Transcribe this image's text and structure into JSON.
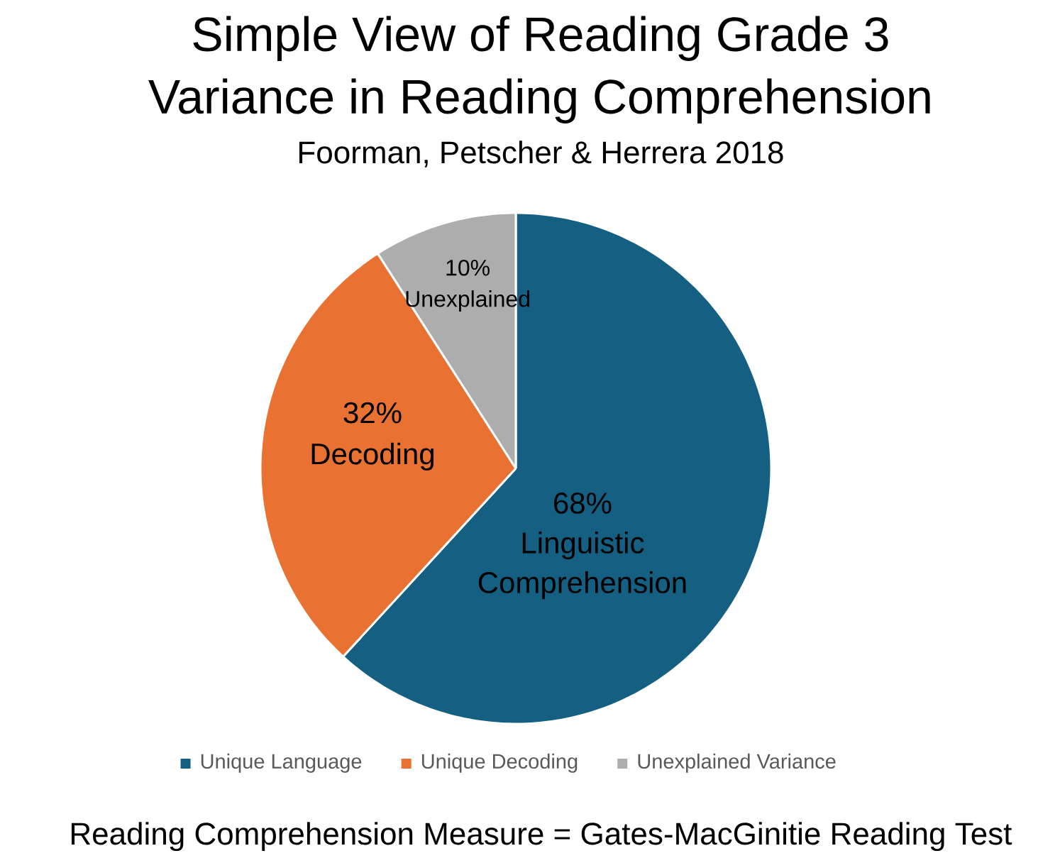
{
  "chart_data": {
    "type": "pie",
    "title": "Simple View of Reading Grade 3 Variance in Reading Comprehension",
    "subtitle": "Foorman, Petscher & Herrera 2018",
    "categories": [
      "Unique Language",
      "Unique Decoding",
      "Unexplained Variance"
    ],
    "values": [
      68,
      32,
      10
    ],
    "colors": [
      "#156082",
      "#e97132",
      "#adadad"
    ],
    "value_labels": [
      "68% Linguistic Comprehension",
      "32% Decoding",
      "10% Unexplained"
    ],
    "legend": "bottom",
    "annotations": [
      "Reading Comprehension Measure = Gates-MacGinitie Reading Test"
    ]
  }
}
